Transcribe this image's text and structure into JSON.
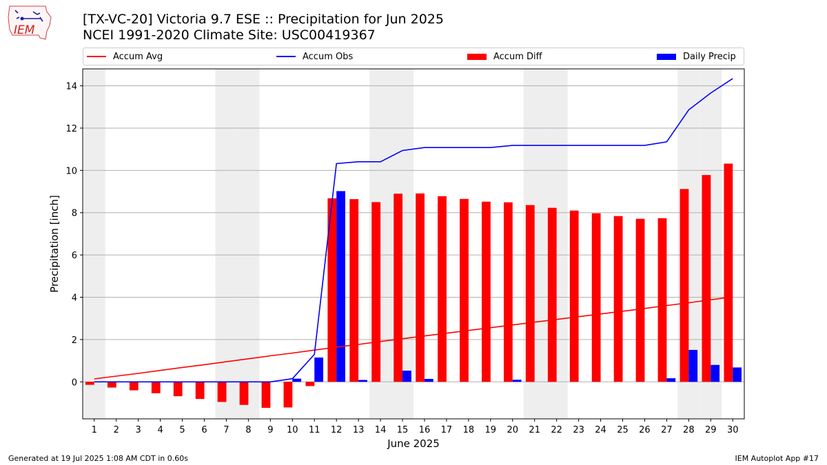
{
  "header": {
    "title_line1": "[TX-VC-20] Victoria 9.7 ESE :: Precipitation for Jun 2025",
    "title_line2": "NCEI 1991-2020 Climate Site: USC00419367",
    "logo_text": "IEM"
  },
  "legend": {
    "accum_avg": "Accum Avg",
    "accum_obs": "Accum Obs",
    "accum_diff": "Accum Diff",
    "daily_precip": "Daily Precip"
  },
  "footer": {
    "left": "Generated at 19 Jul 2025 1:08 AM CDT in 0.60s",
    "right": "IEM Autoplot App #17"
  },
  "colors": {
    "accum_avg": "#ff0000",
    "accum_obs": "#0000ff",
    "accum_diff": "#ff0000",
    "daily_precip": "#0000ff",
    "weekend_shade": "#eeeeee",
    "grid": "#b0b0b0"
  },
  "chart_data": {
    "type": "bar",
    "xlabel": "June 2025",
    "ylabel": "Precipitation [inch]",
    "ylim": [
      -1.75,
      14.8
    ],
    "yticks": [
      0,
      2,
      4,
      6,
      8,
      10,
      12,
      14
    ],
    "grid": "horizontal",
    "legend_position": "top",
    "x": [
      1,
      2,
      3,
      4,
      5,
      6,
      7,
      8,
      9,
      10,
      11,
      12,
      13,
      14,
      15,
      16,
      17,
      18,
      19,
      20,
      21,
      22,
      23,
      24,
      25,
      26,
      27,
      28,
      29,
      30
    ],
    "shaded_days": [
      1,
      7,
      8,
      14,
      15,
      21,
      22,
      28,
      29
    ],
    "series": [
      {
        "name": "Accum Avg",
        "type": "line",
        "values": [
          0.14,
          0.27,
          0.4,
          0.54,
          0.68,
          0.81,
          0.95,
          1.09,
          1.23,
          1.36,
          1.5,
          1.64,
          1.77,
          1.91,
          2.04,
          2.17,
          2.3,
          2.43,
          2.56,
          2.69,
          2.82,
          2.95,
          3.08,
          3.21,
          3.34,
          3.47,
          3.61,
          3.74,
          3.88,
          4.02
        ]
      },
      {
        "name": "Accum Obs",
        "type": "line",
        "values": [
          0,
          0,
          0,
          0,
          0,
          0,
          0,
          0,
          0,
          0.15,
          1.3,
          10.32,
          10.41,
          10.41,
          10.94,
          11.08,
          11.08,
          11.08,
          11.08,
          11.18,
          11.18,
          11.18,
          11.18,
          11.18,
          11.18,
          11.18,
          11.35,
          12.86,
          13.66,
          14.34
        ]
      },
      {
        "name": "Accum Diff",
        "type": "bar",
        "values": [
          -0.14,
          -0.27,
          -0.4,
          -0.54,
          -0.68,
          -0.81,
          -0.95,
          -1.09,
          -1.23,
          -1.21,
          -0.2,
          8.68,
          8.64,
          8.5,
          8.9,
          8.91,
          8.78,
          8.65,
          8.52,
          8.49,
          8.36,
          8.23,
          8.1,
          7.97,
          7.84,
          7.71,
          7.74,
          9.12,
          9.78,
          10.32
        ]
      },
      {
        "name": "Daily Precip",
        "type": "bar",
        "values": [
          0,
          0,
          0,
          0,
          0,
          0,
          0,
          0,
          0,
          0.15,
          1.15,
          9.02,
          0.09,
          0,
          0.53,
          0.14,
          0,
          0,
          0,
          0.1,
          0,
          0,
          0,
          0,
          0,
          0,
          0.17,
          1.51,
          0.8,
          0.68
        ]
      }
    ]
  }
}
